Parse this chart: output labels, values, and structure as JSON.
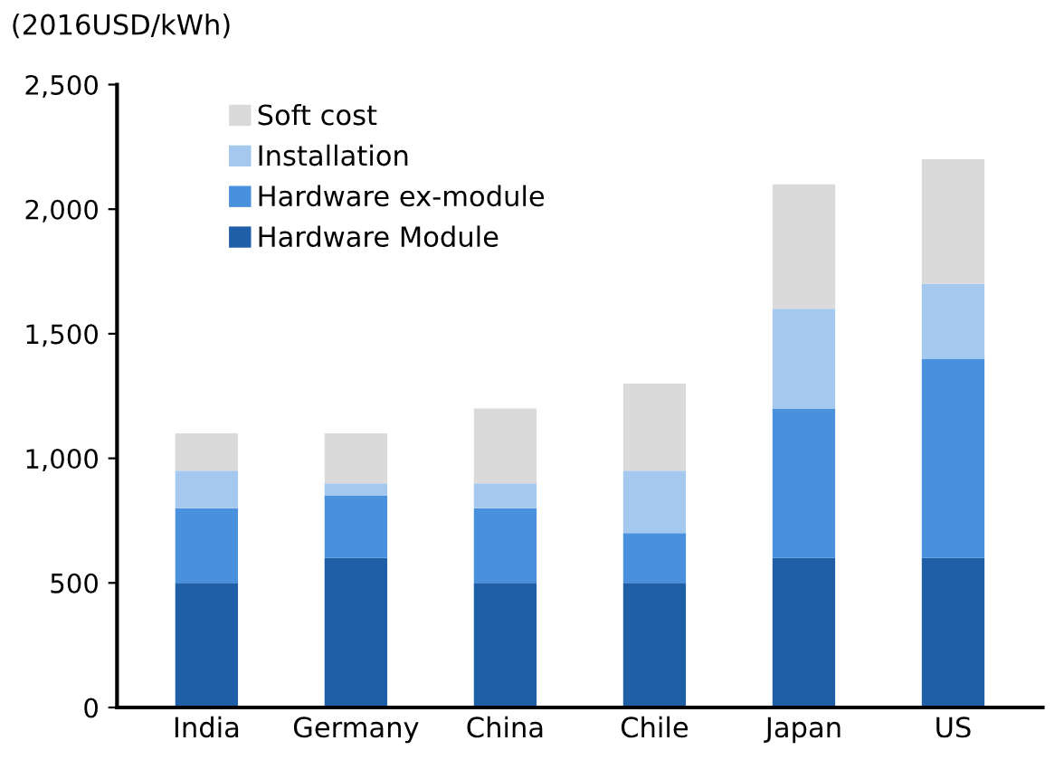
{
  "chart_data": {
    "type": "bar",
    "stacked": true,
    "ylabel": "(2016USD/kWh)",
    "categories": [
      "India",
      "Germany",
      "China",
      "Chile",
      "Japan",
      "US"
    ],
    "series": [
      {
        "name": "Hardware Module",
        "color": "#1f5fa8",
        "values": [
          500,
          600,
          500,
          500,
          600,
          600
        ]
      },
      {
        "name": "Hardware ex-module",
        "color": "#4a91dd",
        "values": [
          300,
          250,
          300,
          200,
          600,
          800
        ]
      },
      {
        "name": "Installation",
        "color": "#a5c8ef",
        "values": [
          150,
          50,
          100,
          250,
          400,
          300
        ]
      },
      {
        "name": "Soft cost",
        "color": "#dadada",
        "values": [
          150,
          200,
          300,
          350,
          500,
          500
        ]
      }
    ],
    "ylim": [
      0,
      2500
    ],
    "yticks": [
      0,
      500,
      {
        "value": 1000,
        "label": "1,000"
      },
      {
        "value": 1500,
        "label": "1,500"
      },
      {
        "value": 2000,
        "label": "2,000"
      },
      {
        "value": 2500,
        "label": "2,500"
      }
    ],
    "grid": false,
    "legend": "top left"
  }
}
